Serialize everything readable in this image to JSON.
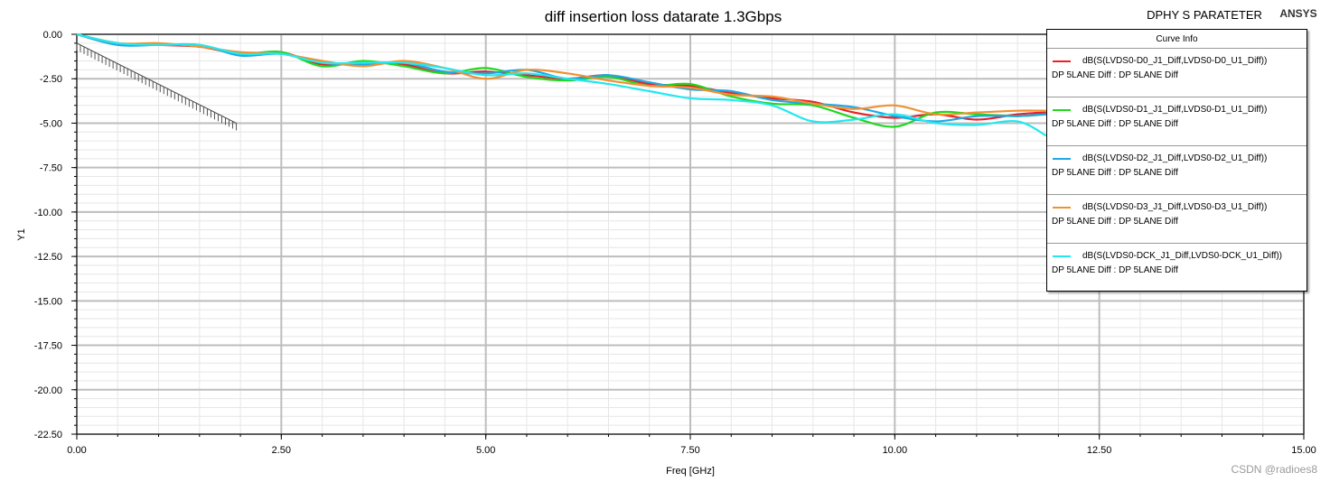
{
  "header": {
    "title": "diff insertion loss datarate 1.3Gbps",
    "plot_name": "DPHY S PARATETER",
    "brand": "ANSYS"
  },
  "watermark": "CSDN @radioes8",
  "legend": {
    "title": "Curve Info",
    "subtitle": "DP 5LANE Diff : DP 5LANE Diff",
    "entries": [
      {
        "name": "dB(S(LVDS0-D0_J1_Diff,LVDS0-D0_U1_Diff))",
        "color": "#e8202a"
      },
      {
        "name": "dB(S(LVDS0-D1_J1_Diff,LVDS0-D1_U1_Diff))",
        "color": "#20d820"
      },
      {
        "name": "dB(S(LVDS0-D2_J1_Diff,LVDS0-D2_U1_Diff))",
        "color": "#1ea8e6"
      },
      {
        "name": "dB(S(LVDS0-D3_J1_Diff,LVDS0-D3_U1_Diff))",
        "color": "#f09030"
      },
      {
        "name": "dB(S(LVDS0-DCK_J1_Diff,LVDS0-DCK_U1_Diff))",
        "color": "#22e8f0"
      }
    ]
  },
  "chart_data": {
    "type": "line",
    "title": "diff insertion loss datarate 1.3Gbps",
    "xlabel": "Freq [GHz]",
    "ylabel": "Y1",
    "xlim": [
      0,
      15
    ],
    "ylim": [
      -22.5,
      0
    ],
    "xticks": [
      "0.00",
      "2.50",
      "5.00",
      "7.50",
      "10.00",
      "12.50",
      "15.00"
    ],
    "yticks": [
      "0.00",
      "-2.50",
      "-5.00",
      "-7.50",
      "-10.00",
      "-12.50",
      "-15.00",
      "-17.50",
      "-20.00",
      "-22.50"
    ],
    "grid": true,
    "legend_position": "top-right",
    "limit_line": {
      "x": [
        0,
        1.95
      ],
      "y": [
        -0.5,
        -5.0
      ]
    },
    "series": [
      {
        "name": "dB(S(LVDS0-D0_J1_Diff,LVDS0-D0_U1_Diff))",
        "color": "#e8202a",
        "x": [
          0,
          0.5,
          1.0,
          1.5,
          2.0,
          2.5,
          3.0,
          3.5,
          4.0,
          4.5,
          5.0,
          5.5,
          6.0,
          6.5,
          7.0,
          7.5,
          8.0,
          8.5,
          9.0,
          9.5,
          10.0,
          10.5,
          11.0,
          11.5,
          11.85
        ],
        "y": [
          0,
          -0.5,
          -0.6,
          -0.7,
          -1.1,
          -1.0,
          -1.7,
          -1.6,
          -1.7,
          -2.2,
          -2.1,
          -2.3,
          -2.5,
          -2.3,
          -2.8,
          -2.9,
          -3.3,
          -3.6,
          -3.8,
          -4.4,
          -4.7,
          -4.5,
          -4.8,
          -4.5,
          -4.4
        ]
      },
      {
        "name": "dB(S(LVDS0-D1_J1_Diff,LVDS0-D1_U1_Diff))",
        "color": "#20d820",
        "x": [
          0,
          0.5,
          1.0,
          1.5,
          2.0,
          2.5,
          3.0,
          3.5,
          4.0,
          4.5,
          5.0,
          5.5,
          6.0,
          6.5,
          7.0,
          7.5,
          8.0,
          8.5,
          9.0,
          9.5,
          10.0,
          10.5,
          11.0,
          11.5,
          11.85
        ],
        "y": [
          0,
          -0.5,
          -0.6,
          -0.6,
          -1.1,
          -1.0,
          -1.8,
          -1.5,
          -1.8,
          -2.2,
          -1.9,
          -2.4,
          -2.6,
          -2.4,
          -2.9,
          -2.8,
          -3.5,
          -3.9,
          -4.0,
          -4.7,
          -5.2,
          -4.4,
          -4.5,
          -4.6,
          -4.5
        ]
      },
      {
        "name": "dB(S(LVDS0-D2_J1_Diff,LVDS0-D2_U1_Diff))",
        "color": "#1ea8e6",
        "x": [
          0,
          0.5,
          1.0,
          1.5,
          2.0,
          2.5,
          3.0,
          3.5,
          4.0,
          4.5,
          5.0,
          5.5,
          6.0,
          6.5,
          7.0,
          7.5,
          8.0,
          8.5,
          9.0,
          9.5,
          10.0,
          10.5,
          11.0,
          11.5,
          11.85
        ],
        "y": [
          0,
          -0.6,
          -0.6,
          -0.6,
          -1.2,
          -1.1,
          -1.6,
          -1.7,
          -1.6,
          -2.1,
          -2.2,
          -2.0,
          -2.5,
          -2.3,
          -2.7,
          -3.1,
          -3.2,
          -3.7,
          -3.9,
          -4.1,
          -4.6,
          -4.9,
          -4.6,
          -4.6,
          -4.5
        ]
      },
      {
        "name": "dB(S(LVDS0-D3_J1_Diff,LVDS0-D3_U1_Diff))",
        "color": "#f09030",
        "x": [
          0,
          0.5,
          1.0,
          1.5,
          2.0,
          2.5,
          3.0,
          3.5,
          4.0,
          4.5,
          5.0,
          5.5,
          6.0,
          6.5,
          7.0,
          7.5,
          8.0,
          8.5,
          9.0,
          9.5,
          10.0,
          10.5,
          11.0,
          11.5,
          11.85
        ],
        "y": [
          0,
          -0.5,
          -0.5,
          -0.7,
          -1.0,
          -1.1,
          -1.5,
          -1.8,
          -1.5,
          -1.9,
          -2.5,
          -2.0,
          -2.2,
          -2.6,
          -2.9,
          -3.0,
          -3.4,
          -3.5,
          -3.9,
          -4.2,
          -4.0,
          -4.5,
          -4.4,
          -4.3,
          -4.3
        ]
      },
      {
        "name": "dB(S(LVDS0-DCK_J1_Diff,LVDS0-DCK_U1_Diff))",
        "color": "#22e8f0",
        "x": [
          0,
          0.5,
          1.0,
          1.5,
          2.0,
          2.5,
          3.0,
          3.5,
          4.0,
          4.5,
          5.0,
          5.5,
          6.0,
          6.5,
          7.0,
          7.5,
          8.0,
          8.5,
          9.0,
          9.5,
          10.0,
          10.5,
          11.0,
          11.5,
          11.85
        ],
        "y": [
          0,
          -0.5,
          -0.6,
          -0.6,
          -1.1,
          -1.1,
          -1.6,
          -1.6,
          -1.6,
          -1.9,
          -2.3,
          -2.2,
          -2.5,
          -2.8,
          -3.2,
          -3.6,
          -3.7,
          -4.0,
          -4.9,
          -4.8,
          -4.5,
          -5.0,
          -5.1,
          -4.9,
          -5.7
        ]
      }
    ]
  }
}
